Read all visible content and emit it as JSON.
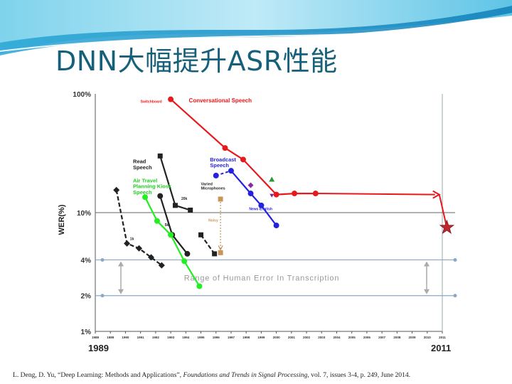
{
  "slide": {
    "title": "DNN大幅提升ASR性能",
    "citation": {
      "authors": "L. Deng, D. Yu, “Deep Learning: Methods and Applications”,",
      "venue": "Foundations and Trends in Signal Processing",
      "details": ", vol. 7, issues 3-4, p. 249, June 2014."
    }
  },
  "chart_data": {
    "type": "line",
    "title": "",
    "xlabel": "",
    "ylabel": "WER(%)",
    "yscale": "log",
    "y_ticks": [
      "100%",
      "10%",
      "4%",
      "2%",
      "1%"
    ],
    "y_tick_values": [
      100,
      10,
      4,
      2,
      1
    ],
    "x_ticks": [
      "1988",
      "1989",
      "1990",
      "1991",
      "1992",
      "1993",
      "1994",
      "1995",
      "1996",
      "1997",
      "1998",
      "1999",
      "2000",
      "2001",
      "2002",
      "2003",
      "2004",
      "2005",
      "2006",
      "2007",
      "2008",
      "2009",
      "2010",
      "2011"
    ],
    "x_range_labels": {
      "start": "1989",
      "end": "2011"
    },
    "ylim": [
      1,
      100
    ],
    "grid": {
      "horizontal_lines": [
        10,
        4,
        2
      ]
    },
    "human_error_band": {
      "low": 2,
      "high": 4,
      "label": "Range of Human Error In Transcription"
    },
    "series": [
      {
        "name": "Conversational Speech",
        "color": "#e8191c",
        "marker": "circle",
        "points": [
          [
            1993.0,
            90
          ],
          [
            1996.6,
            35
          ],
          [
            1997.8,
            28
          ],
          [
            2000.0,
            14.2
          ],
          [
            2001.2,
            14.5
          ],
          [
            2002.6,
            14.5
          ]
        ],
        "extension": {
          "to": [
            2010.8,
            14.2
          ],
          "style": "arrow"
        },
        "star": [
          2011.3,
          7.5
        ]
      },
      {
        "name": "Broadcast Speech",
        "color": "#2222e0",
        "marker": "circle",
        "points": [
          [
            1996.0,
            20.5
          ],
          [
            1997.0,
            22.5
          ],
          [
            1998.3,
            14.5
          ],
          [
            1999.0,
            11.5
          ],
          [
            2000.0,
            7.8
          ]
        ]
      },
      {
        "name": "Read Speech",
        "color": "#222222",
        "marker": "square",
        "points": [
          [
            1992.3,
            30
          ],
          [
            1993.3,
            11.5
          ],
          [
            1994.3,
            10.5
          ]
        ]
      },
      {
        "name": "Read Speech 1k",
        "color": "#222222",
        "marker": "diamond",
        "points": [
          [
            1989.4,
            15.5
          ],
          [
            1990.1,
            5.5
          ],
          [
            1990.9,
            5.0
          ],
          [
            1991.7,
            4.2
          ],
          [
            1992.4,
            3.6
          ]
        ]
      },
      {
        "name": "Read Speech 5k",
        "color": "#222222",
        "marker": "circle",
        "points": [
          [
            1992.3,
            13.8
          ],
          [
            1993.1,
            6.5
          ],
          [
            1994.1,
            4.5
          ]
        ]
      },
      {
        "name": "Air Travel Planning Kiosk Speech",
        "color": "#22ee22",
        "marker": "circle",
        "points": [
          [
            1991.3,
            13.5
          ],
          [
            1992.1,
            8.5
          ],
          [
            1993.0,
            6.5
          ],
          [
            1993.9,
            3.9
          ],
          [
            1994.9,
            2.4
          ]
        ]
      },
      {
        "name": "Varied Microphones",
        "color": "#222222",
        "marker": "square",
        "points": [
          [
            1995.0,
            6.5
          ],
          [
            1995.9,
            4.5
          ]
        ]
      },
      {
        "name": "Noisy",
        "color": "#c8965a",
        "marker": "square",
        "points": [
          [
            1996.3,
            13.0
          ],
          [
            1996.3,
            4.6
          ]
        ]
      }
    ],
    "annotations": [
      {
        "text": "Switchboard",
        "color": "#e8191c"
      },
      {
        "text": "Read Speech",
        "color": "#222222"
      },
      {
        "text": "20k",
        "color": "#222222"
      },
      {
        "text": "1k",
        "color": "#222222"
      },
      {
        "text": "5k",
        "color": "#222222"
      },
      {
        "text": "Air Travel Planning Kiosk Speech",
        "color": "#22cc22"
      },
      {
        "text": "Broadcast Speech",
        "color": "#2222e0"
      },
      {
        "text": "Varied Microphones",
        "color": "#222222"
      },
      {
        "text": "Noisy",
        "color": "#c8965a"
      },
      {
        "text": "News English",
        "color": "#2222e0"
      },
      {
        "text": "Conversational Speech",
        "color": "#e8191c"
      }
    ]
  }
}
